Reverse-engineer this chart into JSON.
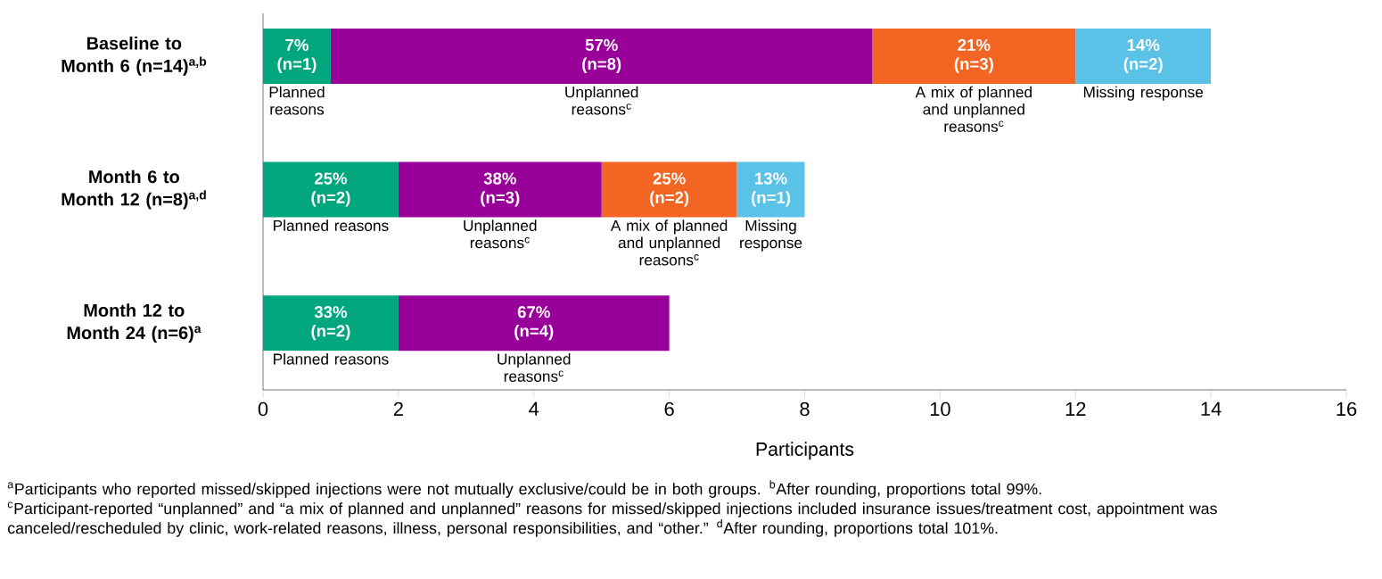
{
  "chart_data": {
    "type": "bar",
    "orientation": "horizontal",
    "stacked": true,
    "legend": false,
    "categories": [
      "Baseline to Month 6 (n=14)$^{a,b}$",
      "Month 6 to Month 12 (n=8)$^{a,d}$",
      "Month 12 to Month 24 (n=6)$^{a}$"
    ],
    "series": [
      {
        "name": "Planned reasons",
        "color": "#00a67e",
        "values": [
          1,
          2,
          2
        ],
        "value_labels": [
          "7% (n=1)",
          "25% (n=2)",
          "33% (n=2)"
        ]
      },
      {
        "name": "Unplanned reasons$^{c}$",
        "color": "#990099",
        "values": [
          8,
          3,
          4
        ],
        "value_labels": [
          "57% (n=8)",
          "38% (n=3)",
          "67% (n=4)"
        ]
      },
      {
        "name": "A mix of planned and unplanned reasons$^{c}$",
        "color": "#f26522",
        "values": [
          3,
          2,
          null
        ],
        "value_labels": [
          "21% (n=3)",
          "25% (n=2)",
          null
        ]
      },
      {
        "name": "Missing response",
        "color": "#5bc2e7",
        "values": [
          2,
          1,
          null
        ],
        "value_labels": [
          "14% (n=2)",
          "13% (n=1)",
          null
        ]
      }
    ],
    "xlim": [
      0,
      16
    ],
    "xticks": [
      0,
      2,
      4,
      6,
      8,
      10,
      12,
      14,
      16
    ],
    "xlabel": "Participants",
    "annotations": [
      "$^{a}$Participants who reported missed/skipped injections were not mutually exclusive/could be in both groups. $^{b}$After rounding, proportions total 99%.",
      "$^{c}$Participant-reported “unplanned” and “a mix of planned and unplanned” reasons for missed/skipped injections included insurance issues/treatment cost, appointment was canceled/rescheduled by clinic, work-related reasons, illness, personal responsibilities, and “other.” $^{d}$After rounding, proportions total 101%."
    ]
  }
}
